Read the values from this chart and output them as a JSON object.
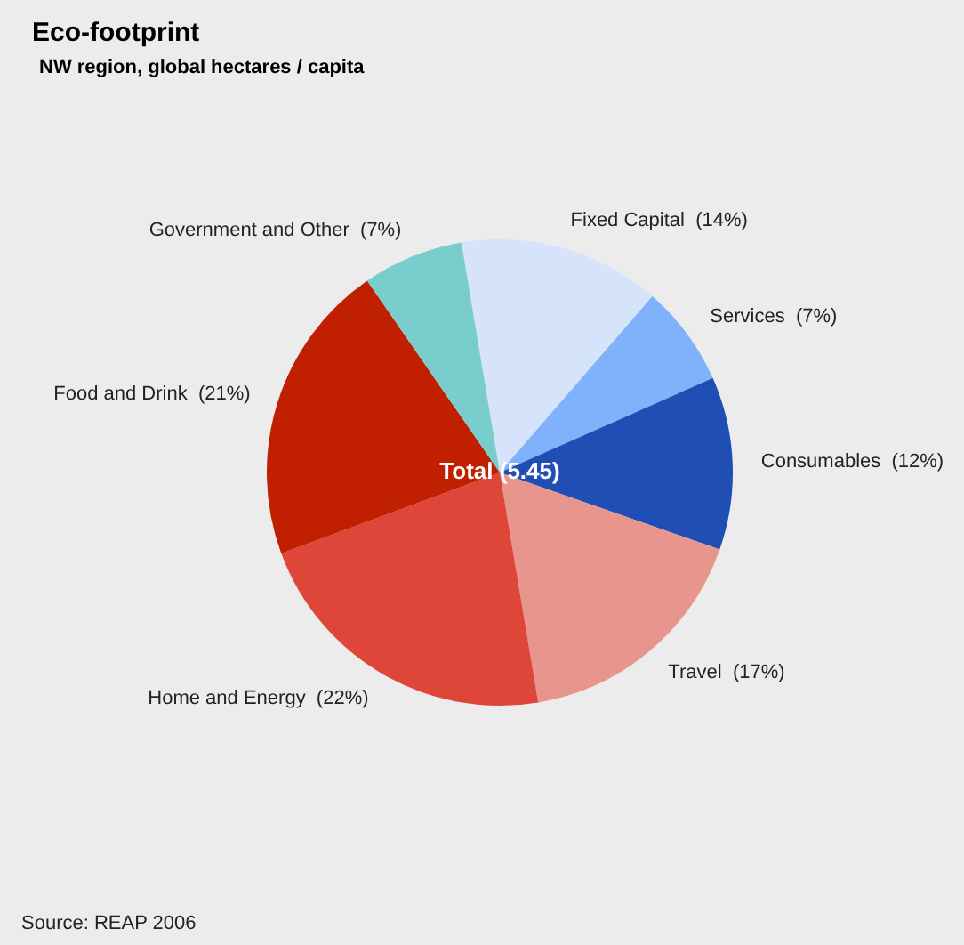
{
  "chart_data": {
    "type": "pie",
    "title": "Eco-footprint",
    "subtitle": "NW region, global hectares / capita",
    "categories": [
      "Fixed Capital",
      "Services",
      "Consumables",
      "Travel",
      "Home and Energy",
      "Food and Drink",
      "Government and Other"
    ],
    "values": [
      14,
      7,
      12,
      17,
      22,
      21,
      7
    ],
    "value_labels": [
      "(14%)",
      "(7%)",
      "(12%)",
      "(17%)",
      "(22%)",
      "(21%)",
      "(7%)"
    ],
    "colors": [
      "#d6e4fb",
      "#7fb2fb",
      "#1f4fb5",
      "#e8968d",
      "#dd4638",
      "#c01f00",
      "#79cdcd"
    ],
    "annotations": [
      "Total (5.45)",
      "Source: REAP 2006"
    ],
    "legend": false
  }
}
